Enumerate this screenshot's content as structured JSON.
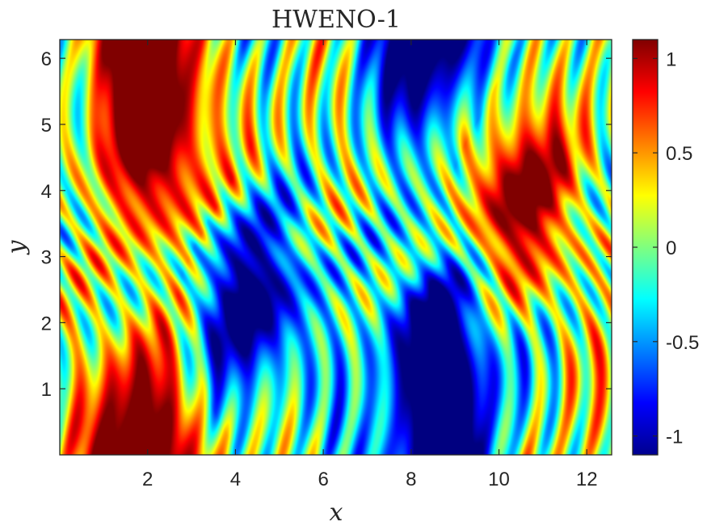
{
  "chart_data": {
    "type": "heatmap",
    "title": "HWENO-1",
    "xlabel": "x",
    "ylabel": "y",
    "xlim": [
      0.0,
      12.566
    ],
    "ylim": [
      0.0,
      6.283
    ],
    "x_ticks": [
      2,
      4,
      6,
      8,
      10,
      12
    ],
    "y_ticks": [
      1,
      2,
      3,
      4,
      5,
      6
    ],
    "x_tick_labels": [
      "2",
      "4",
      "6",
      "8",
      "10",
      "12"
    ],
    "y_tick_labels": [
      "1",
      "2",
      "3",
      "4",
      "5",
      "6"
    ],
    "colormap": "jet",
    "grid": false,
    "colorbar": {
      "range": [
        -1.1,
        1.1
      ],
      "ticks": [
        -1,
        -0.5,
        0,
        0.5,
        1
      ],
      "tick_labels": [
        "-1",
        "-0.5",
        "0",
        "0.5",
        "1"
      ],
      "placement": "right"
    },
    "vortices": [
      {
        "sign": "positive",
        "center": [
          2.3,
          4.7
        ]
      },
      {
        "sign": "positive",
        "center": [
          10.4,
          4.0
        ]
      },
      {
        "sign": "positive",
        "center": [
          1.8,
          0.3
        ]
      },
      {
        "sign": "negative",
        "center": [
          4.4,
          2.3
        ]
      },
      {
        "sign": "negative",
        "center": [
          8.7,
          1.6
        ]
      },
      {
        "sign": "negative",
        "center": [
          8.5,
          6.0
        ]
      }
    ]
  }
}
